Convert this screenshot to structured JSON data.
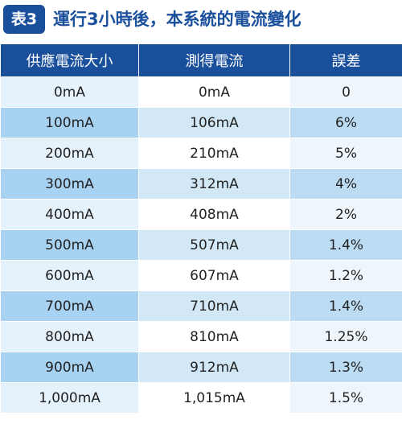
{
  "header": {
    "badge": "表3",
    "title": "運行3小時後，本系統的電流變化"
  },
  "table": {
    "columns": [
      "供應電流大小",
      "測得電流",
      "誤差"
    ],
    "rows": [
      [
        "0mA",
        "0mA",
        "0"
      ],
      [
        "100mA",
        "106mA",
        "6%"
      ],
      [
        "200mA",
        "210mA",
        "5%"
      ],
      [
        "300mA",
        "312mA",
        "4%"
      ],
      [
        "400mA",
        "408mA",
        "2%"
      ],
      [
        "500mA",
        "507mA",
        "1.4%"
      ],
      [
        "600mA",
        "607mA",
        "1.2%"
      ],
      [
        "700mA",
        "710mA",
        "1.4%"
      ],
      [
        "800mA",
        "810mA",
        "1.25%"
      ],
      [
        "900mA",
        "912mA",
        "1.3%"
      ],
      [
        "1,000mA",
        "1,015mA",
        "1.5%"
      ]
    ]
  }
}
